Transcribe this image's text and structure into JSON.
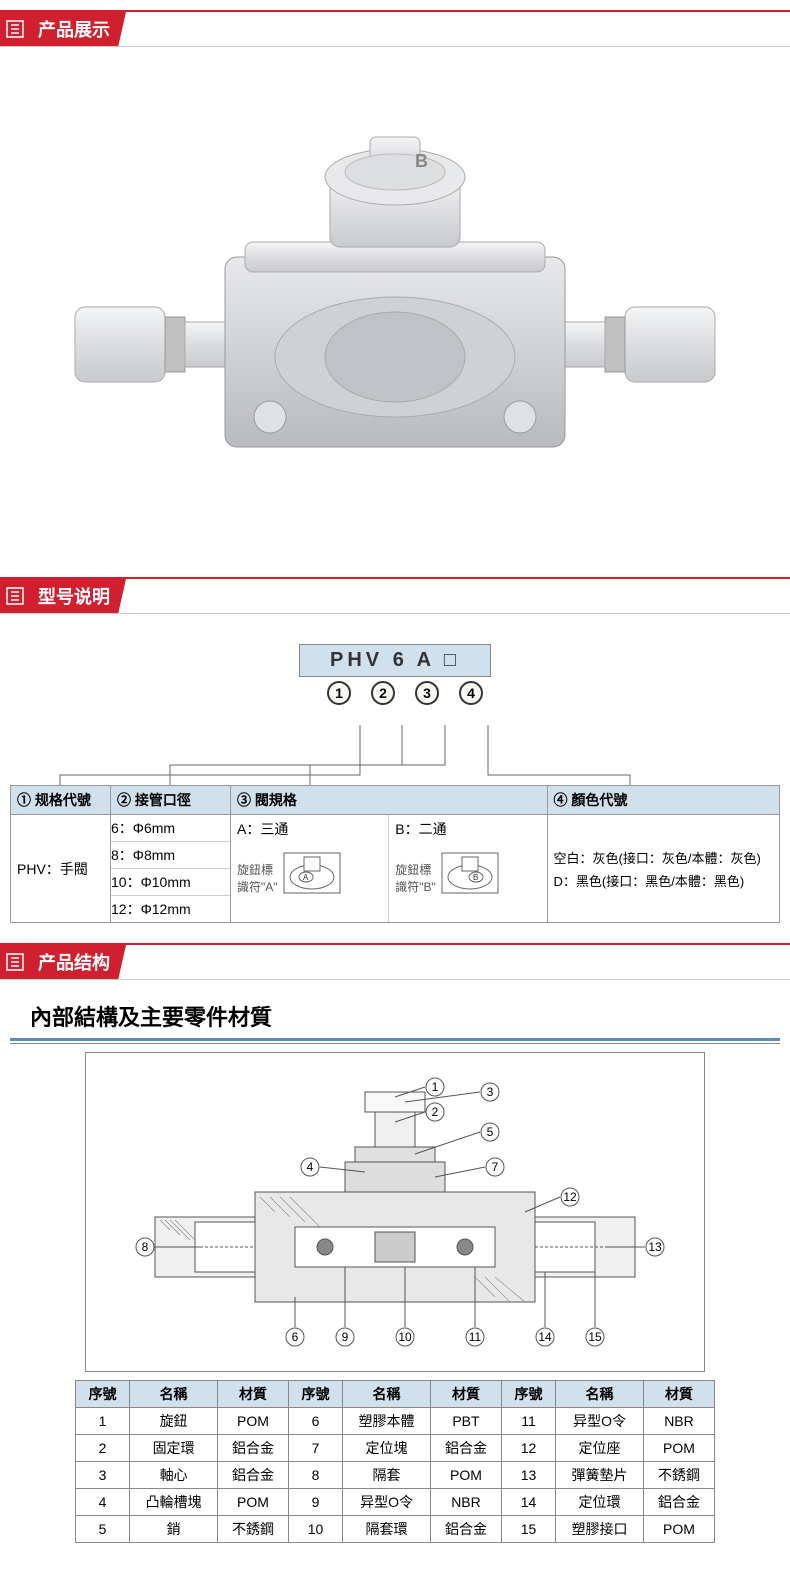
{
  "sections": {
    "display": "产品展示",
    "model": "型号说明",
    "structure": "产品结构"
  },
  "model_code": {
    "code": "PHV 6 A □",
    "indices": [
      "1",
      "2",
      "3",
      "4"
    ]
  },
  "spec_headers": {
    "col1": "① 规格代號",
    "col2": "② 接管口徑",
    "col3": "③ 閥規格",
    "col4": "④ 顏色代號"
  },
  "spec_body": {
    "model_label": "PHV：手閥",
    "sizes": [
      "6：Φ6mm",
      "8：Φ8mm",
      "10：Φ10mm",
      "12：Φ12mm"
    ],
    "valve_a_label": "A：三通",
    "valve_a_desc1": "旋鈕標",
    "valve_a_desc2": "識符\"A\"",
    "valve_b_label": "B：二通",
    "valve_b_desc1": "旋鈕標",
    "valve_b_desc2": "識符\"B\"",
    "color1": "空白：灰色(接口：灰色/本體：灰色)",
    "color2": "D：黑色(接口：黑色/本體：黑色)"
  },
  "structure_title": "內部結構及主要零件材質",
  "parts_headers": {
    "seq": "序號",
    "name": "名稱",
    "mat": "材質"
  },
  "parts": [
    {
      "n": "1",
      "name": "旋鈕",
      "mat": "POM"
    },
    {
      "n": "2",
      "name": "固定環",
      "mat": "鋁合金"
    },
    {
      "n": "3",
      "name": "軸心",
      "mat": "鋁合金"
    },
    {
      "n": "4",
      "name": "凸輪槽塊",
      "mat": "POM"
    },
    {
      "n": "5",
      "name": "銷",
      "mat": "不銹鋼"
    },
    {
      "n": "6",
      "name": "塑膠本體",
      "mat": "PBT"
    },
    {
      "n": "7",
      "name": "定位塊",
      "mat": "鋁合金"
    },
    {
      "n": "8",
      "name": "隔套",
      "mat": "POM"
    },
    {
      "n": "9",
      "name": "异型O令",
      "mat": "NBR"
    },
    {
      "n": "10",
      "name": "隔套環",
      "mat": "鋁合金"
    },
    {
      "n": "11",
      "name": "异型O令",
      "mat": "NBR"
    },
    {
      "n": "12",
      "name": "定位座",
      "mat": "POM"
    },
    {
      "n": "13",
      "name": "彈簧墊片",
      "mat": "不銹鋼"
    },
    {
      "n": "14",
      "name": "定位環",
      "mat": "鋁合金"
    },
    {
      "n": "15",
      "name": "塑膠接口",
      "mat": "POM"
    }
  ],
  "colors": {
    "accent": "#d01f2e",
    "header_bg": "#d0e0ed",
    "border": "#888888",
    "body_gray": "#d8d9da",
    "body_light": "#f0f1f2"
  }
}
